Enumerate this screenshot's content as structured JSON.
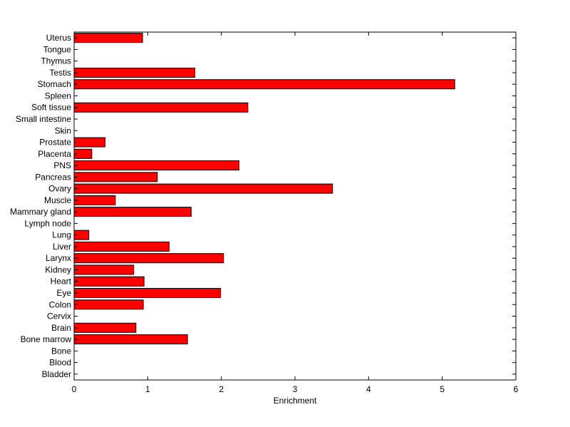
{
  "chart_data": {
    "type": "bar",
    "orientation": "horizontal",
    "title": "",
    "xlabel": "Enrichment",
    "ylabel": "",
    "xlim": [
      0,
      6
    ],
    "xticks": [
      "0",
      "1",
      "2",
      "3",
      "4",
      "5",
      "6"
    ],
    "grid": false,
    "legend": "none",
    "bar_color": "#ff0000",
    "edge_color": "#000000",
    "categories": [
      "Bladder",
      "Blood",
      "Bone",
      "Bone marrow",
      "Brain",
      "Cervix",
      "Colon",
      "Eye",
      "Heart",
      "Kidney",
      "Larynx",
      "Liver",
      "Lung",
      "Lymph node",
      "Mammary gland",
      "Muscle",
      "Ovary",
      "Pancreas",
      "PNS",
      "Placenta",
      "Prostate",
      "Skin",
      "Small intestine",
      "Soft tissue",
      "Spleen",
      "Stomach",
      "Testis",
      "Thymus",
      "Tongue",
      "Uterus"
    ],
    "values": [
      0,
      0,
      0,
      1.54,
      0.84,
      0,
      0.94,
      1.99,
      0.95,
      0.81,
      2.03,
      1.29,
      0.2,
      0,
      1.59,
      0.56,
      3.51,
      1.13,
      2.24,
      0.24,
      0.42,
      0,
      0,
      2.36,
      0,
      5.17,
      1.64,
      0,
      0,
      0.93
    ]
  }
}
